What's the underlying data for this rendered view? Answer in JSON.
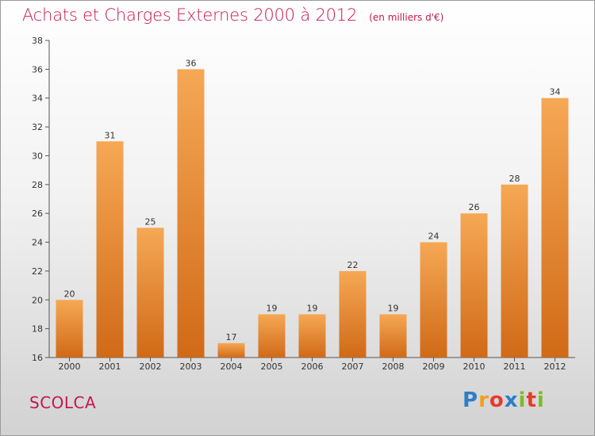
{
  "title": "Achats et Charges Externes 2000 à 2012",
  "subtitle": "(en milliers d'€)",
  "commune": "SCOLCA",
  "logo": {
    "text": "Proxiti",
    "letters": [
      "P",
      "r",
      "o",
      "x",
      "i",
      "t",
      "i"
    ],
    "colors": [
      "#2a7fc8",
      "#f2a01c",
      "#e83a2a",
      "#2a7fc8",
      "#7cbb24",
      "#e83a2a",
      "#7cbb24"
    ]
  },
  "colors": {
    "bar_top": "#f6a855",
    "bar_bottom": "#d06a17",
    "title": "#c5184c"
  },
  "chart_data": {
    "type": "bar",
    "categories": [
      "2000",
      "2001",
      "2002",
      "2003",
      "2004",
      "2005",
      "2006",
      "2007",
      "2008",
      "2009",
      "2010",
      "2011",
      "2012"
    ],
    "values": [
      20,
      31,
      25,
      36,
      17,
      19,
      19,
      22,
      19,
      24,
      26,
      28,
      34
    ],
    "ylim": [
      16,
      38
    ],
    "yticks": [
      16,
      18,
      20,
      22,
      24,
      26,
      28,
      30,
      32,
      34,
      36,
      38
    ],
    "grid": false,
    "xlabel": "",
    "ylabel": ""
  }
}
